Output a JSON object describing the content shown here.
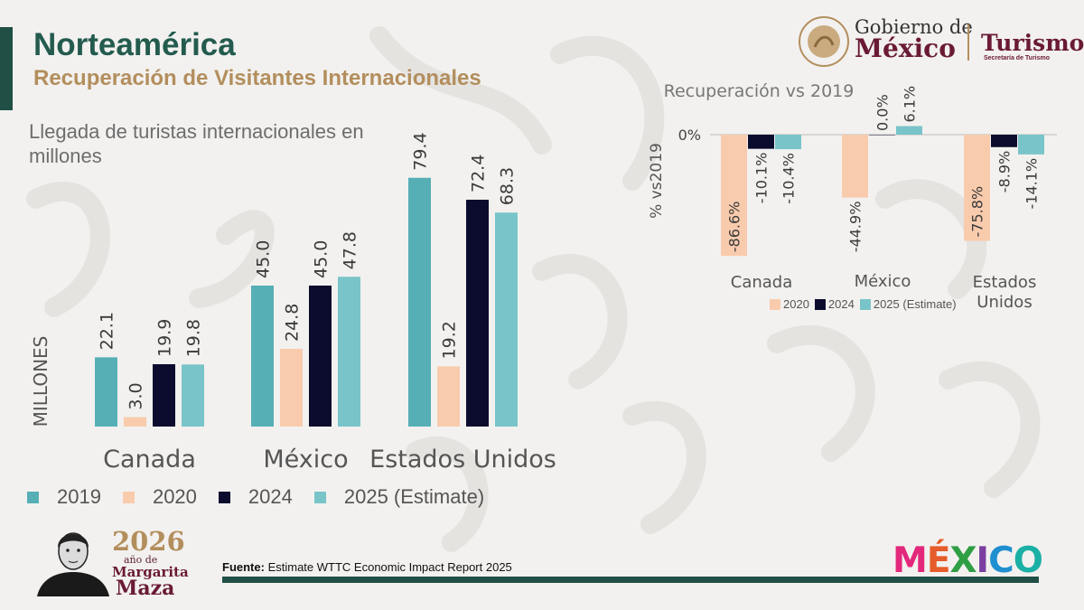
{
  "title": "Norteamérica",
  "subtitle": "Recuperación de Visitantes Internacionales",
  "header": {
    "gobierno_line1": "Gobierno de",
    "gobierno_line2": "México",
    "turismo": "Turismo",
    "turismo_sub": "Secretaría de Turismo"
  },
  "source": {
    "label": "Fuente:",
    "text": "Estimate WTTC Economic Impact Report 2025"
  },
  "anniversary": {
    "year": "2026",
    "of": "año de",
    "name1": "Margarita",
    "name2": "Maza"
  },
  "brand": [
    "M",
    "É",
    "X",
    "I",
    "C",
    "O"
  ],
  "colors": {
    "c2019": "#56afb5",
    "c2020": "#f9cbad",
    "c2024": "#0b0b2e",
    "c2025": "#79c4c9",
    "title": "#235b4e",
    "subtitle": "#b38e5d"
  },
  "chart_data": [
    {
      "type": "bar",
      "title": "Llegada de turistas  internacionales en millones",
      "ylabel": "MILLONES",
      "categories": [
        "Canada",
        "México",
        "Estados Unidos"
      ],
      "series": [
        {
          "name": "2019",
          "values": [
            22.1,
            45.0,
            79.4
          ]
        },
        {
          "name": "2020",
          "values": [
            3.0,
            24.8,
            19.2
          ]
        },
        {
          "name": "2024",
          "values": [
            19.9,
            45.0,
            72.4
          ]
        },
        {
          "name": "2025 (Estimate)",
          "values": [
            19.8,
            47.8,
            68.3
          ]
        }
      ],
      "ylim": [
        0,
        90
      ],
      "legend": "bottom",
      "grid": false
    },
    {
      "type": "bar",
      "title": "Recuperación vs 2019",
      "ylabel": "% vs2019",
      "categories": [
        "Canada",
        "México",
        "Estados Unidos"
      ],
      "series": [
        {
          "name": "2020",
          "values": [
            -86.6,
            -44.9,
            -75.8
          ]
        },
        {
          "name": "2024",
          "values": [
            -10.1,
            0.0,
            -8.9
          ]
        },
        {
          "name": "2025 (Estimate)",
          "values": [
            -10.4,
            6.1,
            -14.1
          ]
        }
      ],
      "yticks": [
        "0%"
      ],
      "ylim": [
        -100,
        10
      ],
      "legend": "bottom",
      "grid": false
    }
  ]
}
